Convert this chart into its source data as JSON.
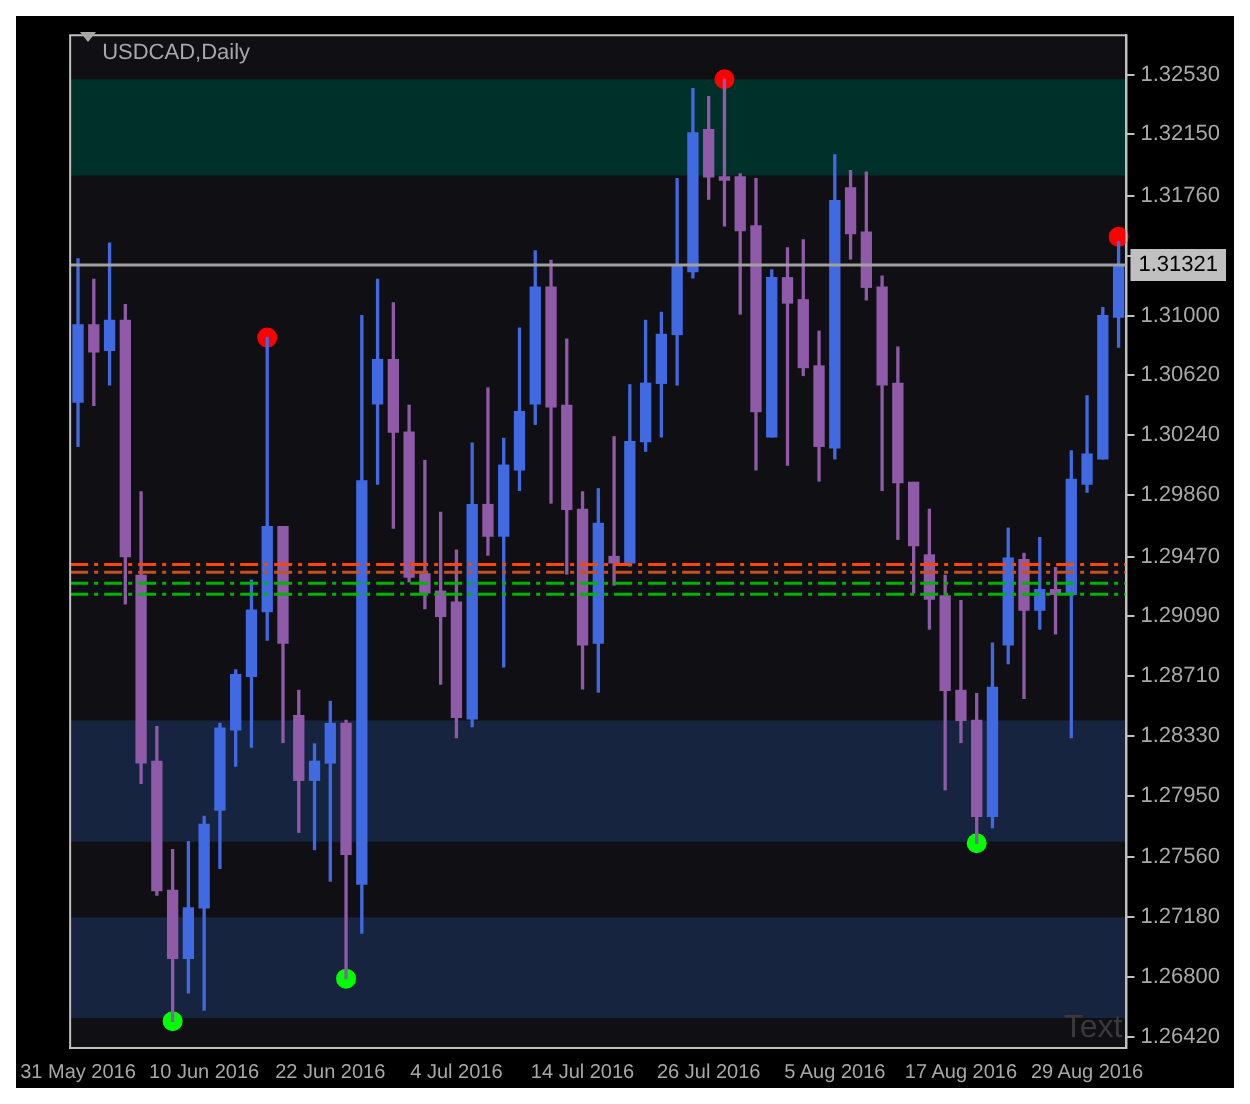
{
  "chart_data": {
    "type": "candlestick",
    "title": "USDCAD,Daily",
    "categories": [
      "31 May 2016",
      null,
      null,
      null,
      null,
      null,
      null,
      null,
      "10 Jun 2016",
      null,
      null,
      null,
      null,
      null,
      null,
      null,
      "22 Jun 2016",
      null,
      null,
      null,
      null,
      null,
      null,
      null,
      "4 Jul 2016",
      null,
      null,
      null,
      null,
      null,
      null,
      null,
      "14 Jul 2016",
      null,
      null,
      null,
      null,
      null,
      null,
      null,
      "26 Jul 2016",
      null,
      null,
      null,
      null,
      null,
      null,
      null,
      "5 Aug 2016",
      null,
      null,
      null,
      null,
      null,
      null,
      null,
      "17 Aug 2016",
      null,
      null,
      null,
      null,
      null,
      null,
      null,
      "29 Aug 2016",
      null,
      null
    ],
    "ohlc": [
      [
        1.3045,
        1.3136,
        1.3017,
        1.3094
      ],
      [
        1.3094,
        1.3123,
        1.3043,
        1.3077
      ],
      [
        1.3078,
        1.3146,
        1.3056,
        1.3097
      ],
      [
        1.3097,
        1.3107,
        1.2917,
        1.2947
      ],
      [
        1.2935,
        1.2988,
        1.2803,
        1.2816
      ],
      [
        1.2817,
        1.2839,
        1.2732,
        1.2735
      ],
      [
        1.2735,
        1.2761,
        1.2652,
        1.2692
      ],
      [
        1.2692,
        1.2766,
        1.267,
        1.2724
      ],
      [
        1.2724,
        1.2782,
        1.2659,
        1.2777
      ],
      [
        1.2786,
        1.2841,
        1.2749,
        1.2838
      ],
      [
        1.2837,
        1.2875,
        1.2814,
        1.2872
      ],
      [
        1.2871,
        1.2932,
        1.2826,
        1.2913
      ],
      [
        1.2912,
        1.3086,
        1.2894,
        1.2966
      ],
      [
        1.2966,
        1.2966,
        1.2829,
        1.2892
      ],
      [
        1.2846,
        1.2862,
        1.2772,
        1.2805
      ],
      [
        1.2805,
        1.2828,
        1.2761,
        1.2817
      ],
      [
        1.2816,
        1.2855,
        1.2741,
        1.2841
      ],
      [
        1.2841,
        1.2843,
        1.2679,
        1.2758
      ],
      [
        1.2739,
        1.31,
        1.2708,
        1.2995
      ],
      [
        1.3044,
        1.3123,
        1.2993,
        1.3072
      ],
      [
        1.3072,
        1.3108,
        1.2965,
        1.3026
      ],
      [
        1.3026,
        1.3043,
        1.2931,
        1.2934
      ],
      [
        1.2936,
        1.3008,
        1.2914,
        1.2924
      ],
      [
        1.2925,
        1.2975,
        1.2866,
        1.2909
      ],
      [
        1.2918,
        1.2951,
        1.2832,
        1.2845
      ],
      [
        1.2844,
        1.3019,
        1.2839,
        1.298
      ],
      [
        1.298,
        1.3054,
        1.2948,
        1.296
      ],
      [
        1.296,
        1.3022,
        1.2877,
        1.3005
      ],
      [
        1.3002,
        1.3092,
        1.2989,
        1.3039
      ],
      [
        1.3044,
        1.3141,
        1.3031,
        1.3118
      ],
      [
        1.3118,
        1.3135,
        1.2981,
        1.3042
      ],
      [
        1.3043,
        1.3085,
        1.2936,
        1.2977
      ],
      [
        1.2977,
        1.2988,
        1.2863,
        1.2891
      ],
      [
        1.2892,
        1.299,
        1.2861,
        1.2968
      ],
      [
        1.2947,
        1.3023,
        1.2929,
        1.2943
      ],
      [
        1.2943,
        1.3056,
        1.2941,
        1.302
      ],
      [
        1.302,
        1.3097,
        1.3014,
        1.3057
      ],
      [
        1.3057,
        1.3102,
        1.3023,
        1.3088
      ],
      [
        1.3088,
        1.3187,
        1.3056,
        1.3131
      ],
      [
        1.3128,
        1.3244,
        1.3124,
        1.3216
      ],
      [
        1.3218,
        1.3239,
        1.3174,
        1.3188
      ],
      [
        1.3188,
        1.325,
        1.3157,
        1.3186
      ],
      [
        1.3188,
        1.319,
        1.3101,
        1.3154
      ],
      [
        1.3157,
        1.3187,
        1.3002,
        1.3039
      ],
      [
        1.3023,
        1.3129,
        1.3023,
        1.3124
      ],
      [
        1.3124,
        1.3143,
        1.3005,
        1.3108
      ],
      [
        1.311,
        1.3148,
        1.3062,
        1.3067
      ],
      [
        1.3068,
        1.309,
        1.2995,
        1.3017
      ],
      [
        1.3016,
        1.3202,
        1.3009,
        1.3173
      ],
      [
        1.3181,
        1.3192,
        1.3136,
        1.3152
      ],
      [
        1.3153,
        1.3191,
        1.311,
        1.3118
      ],
      [
        1.3118,
        1.3125,
        1.2989,
        1.3056
      ],
      [
        1.3057,
        1.308,
        1.2958,
        1.2994
      ],
      [
        1.2994,
        1.2994,
        1.2924,
        1.2954
      ],
      [
        1.2948,
        1.2977,
        1.2901,
        1.292
      ],
      [
        1.2922,
        1.2935,
        1.2799,
        1.2862
      ],
      [
        1.2862,
        1.2919,
        1.2829,
        1.2843
      ],
      [
        1.2843,
        1.286,
        1.2765,
        1.2782
      ],
      [
        1.2782,
        1.2892,
        1.2775,
        1.2864
      ],
      [
        1.2891,
        1.2965,
        1.2879,
        1.2946
      ],
      [
        1.2945,
        1.2949,
        1.2857,
        1.2913
      ],
      [
        1.2913,
        1.2959,
        1.2901,
        1.2926
      ],
      [
        1.2926,
        1.294,
        1.2898,
        1.2923
      ],
      [
        1.2923,
        1.3014,
        1.2832,
        1.2996
      ],
      [
        1.2993,
        1.3049,
        1.2988,
        1.3012
      ],
      [
        1.3009,
        1.3105,
        1.3009,
        1.31
      ],
      [
        1.3099,
        1.3147,
        1.308,
        1.3132
      ]
    ],
    "colors": [
      "#4169e1",
      "#8f5aa8",
      "#4169e1",
      "#8f5aa8",
      "#8f5aa8",
      "#8f5aa8",
      "#8f5aa8",
      "#4169e1",
      "#4169e1",
      "#4169e1",
      "#4169e1",
      "#4169e1",
      "#4169e1",
      "#8f5aa8",
      "#8f5aa8",
      "#4169e1",
      "#4169e1",
      "#8f5aa8",
      "#4169e1",
      "#4169e1",
      "#8f5aa8",
      "#8f5aa8",
      "#8f5aa8",
      "#8f5aa8",
      "#8f5aa8",
      "#4169e1",
      "#8f5aa8",
      "#4169e1",
      "#4169e1",
      "#4169e1",
      "#8f5aa8",
      "#8f5aa8",
      "#8f5aa8",
      "#4169e1",
      "#8f5aa8",
      "#4169e1",
      "#4169e1",
      "#4169e1",
      "#4169e1",
      "#4169e1",
      "#8f5aa8",
      "#8f5aa8",
      "#8f5aa8",
      "#8f5aa8",
      "#4169e1",
      "#8f5aa8",
      "#8f5aa8",
      "#8f5aa8",
      "#4169e1",
      "#8f5aa8",
      "#8f5aa8",
      "#8f5aa8",
      "#8f5aa8",
      "#8f5aa8",
      "#8f5aa8",
      "#8f5aa8",
      "#8f5aa8",
      "#8f5aa8",
      "#4169e1",
      "#4169e1",
      "#8f5aa8",
      "#4169e1",
      "#8f5aa8",
      "#4169e1",
      "#4169e1",
      "#4169e1",
      "#4169e1"
    ],
    "series": [
      {
        "type": "scatter",
        "color": "#ff0000",
        "values": [
          null,
          null,
          null,
          null,
          null,
          null,
          null,
          null,
          null,
          null,
          null,
          null,
          1.3086,
          null,
          null,
          null,
          null,
          null,
          null,
          null,
          null,
          null,
          null,
          null,
          null,
          null,
          null,
          null,
          null,
          null,
          null,
          null,
          null,
          null,
          null,
          null,
          null,
          null,
          null,
          null,
          null,
          1.325,
          null,
          null,
          null,
          null,
          null,
          null,
          null,
          null,
          null,
          null,
          null,
          null,
          null,
          null,
          null,
          null,
          null,
          null,
          null,
          null,
          null,
          null,
          null,
          null,
          1.315
        ]
      },
      {
        "type": "scatter",
        "color": "#00ff00",
        "values": [
          null,
          null,
          null,
          null,
          null,
          null,
          1.2652,
          null,
          null,
          null,
          null,
          null,
          null,
          null,
          null,
          null,
          null,
          1.2679,
          null,
          null,
          null,
          null,
          null,
          null,
          null,
          null,
          null,
          null,
          null,
          null,
          null,
          null,
          null,
          null,
          null,
          null,
          null,
          null,
          null,
          null,
          null,
          null,
          null,
          null,
          null,
          null,
          null,
          null,
          null,
          null,
          null,
          null,
          null,
          null,
          null,
          null,
          null,
          1.2765,
          null,
          null,
          null,
          null,
          null,
          null,
          null,
          null,
          null
        ]
      }
    ],
    "marker": "circle",
    "ylim": [
      1.2635,
      1.3278
    ],
    "yticks": [
      {
        "value": 1.2642,
        "label": "1.26420"
      },
      {
        "value": 1.268,
        "label": "1.26800"
      },
      {
        "value": 1.2718,
        "label": "1.27180"
      },
      {
        "value": 1.2756,
        "label": "1.27560"
      },
      {
        "value": 1.2795,
        "label": "1.27950"
      },
      {
        "value": 1.2833,
        "label": "1.28330"
      },
      {
        "value": 1.2871,
        "label": "1.28710"
      },
      {
        "value": 1.2909,
        "label": "1.29090"
      },
      {
        "value": 1.2947,
        "label": "1.29470"
      },
      {
        "value": 1.2986,
        "label": "1.29860"
      },
      {
        "value": 1.3024,
        "label": "1.30240"
      },
      {
        "value": 1.3062,
        "label": "1.30620"
      },
      {
        "value": 1.31,
        "label": "1.31000"
      },
      {
        "value": 1.3138,
        "label": null
      },
      {
        "value": 1.3176,
        "label": "1.31760"
      },
      {
        "value": 1.3215,
        "label": "1.32150"
      },
      {
        "value": 1.3253,
        "label": "1.32530"
      }
    ],
    "bands": [
      {
        "axis": "y",
        "from": 1.3189,
        "to": 1.325,
        "color": "#00302a"
      },
      {
        "axis": "y",
        "from": 1.2766,
        "to": 1.2843,
        "color": "#17243f"
      },
      {
        "axis": "y",
        "from": 1.2654,
        "to": 1.2718,
        "color": "#17243f"
      }
    ],
    "ref_lines": [
      {
        "axis": "y",
        "value": 1.31321,
        "label": "1.31321",
        "color": "#a0a0a0",
        "line_style": "solid"
      },
      {
        "axis": "y",
        "value": 1.2942,
        "color": "#ff4500",
        "line_style": "dashed"
      },
      {
        "axis": "y",
        "value": 1.2937,
        "color": "#c8501e",
        "line_style": "dashed"
      },
      {
        "axis": "y",
        "value": 1.293,
        "color": "#00b400",
        "line_style": "dashed"
      },
      {
        "axis": "y",
        "value": 1.2923,
        "color": "#00b400",
        "line_style": "dashed"
      }
    ],
    "annotations": [
      "Text"
    ],
    "grid": false,
    "legend": false
  }
}
